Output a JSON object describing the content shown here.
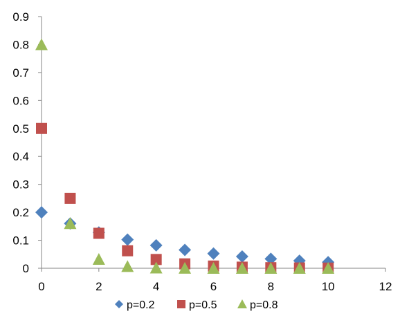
{
  "chart_data": {
    "type": "scatter",
    "title": "",
    "xlabel": "",
    "ylabel": "",
    "xlim": [
      0,
      12
    ],
    "ylim": [
      0,
      0.9
    ],
    "x_ticks": [
      "0",
      "2",
      "4",
      "6",
      "8",
      "10",
      "12"
    ],
    "y_ticks": [
      "0",
      "0.1",
      "0.2",
      "0.3",
      "0.4",
      "0.5",
      "0.6",
      "0.7",
      "0.8",
      "0.9"
    ],
    "grid": false,
    "legend_position": "bottom",
    "series": [
      {
        "name": "p=0.2",
        "marker": "diamond",
        "color": "#4F81BD",
        "x": [
          0,
          1,
          2,
          3,
          4,
          5,
          6,
          7,
          8,
          9,
          10
        ],
        "y": [
          0.2,
          0.16,
          0.128,
          0.1024,
          0.0819,
          0.0655,
          0.0524,
          0.0419,
          0.0336,
          0.0268,
          0.0215
        ]
      },
      {
        "name": "p=0.5",
        "marker": "square",
        "color": "#C0504D",
        "x": [
          0,
          1,
          2,
          3,
          4,
          5,
          6,
          7,
          8,
          9,
          10
        ],
        "y": [
          0.5,
          0.25,
          0.125,
          0.0625,
          0.0313,
          0.0156,
          0.0078,
          0.0039,
          0.002,
          0.001,
          0.0005
        ]
      },
      {
        "name": "p=0.8",
        "marker": "triangle",
        "color": "#9BBB59",
        "x": [
          0,
          1,
          2,
          3,
          4,
          5,
          6,
          7,
          8,
          9,
          10
        ],
        "y": [
          0.8,
          0.16,
          0.032,
          0.0064,
          0.0013,
          0.0003,
          0.0001,
          0,
          0,
          0,
          0
        ]
      }
    ]
  }
}
